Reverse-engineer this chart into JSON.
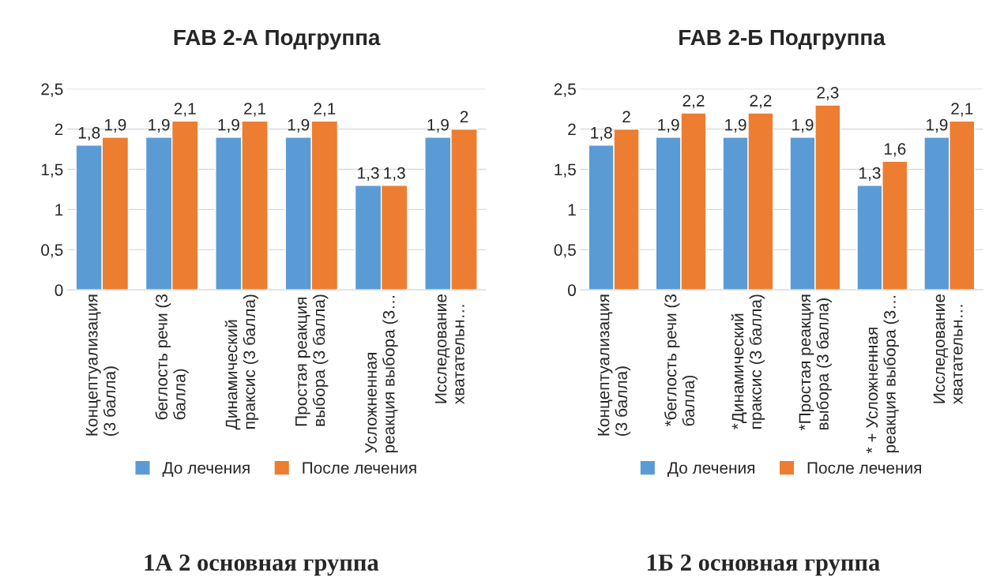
{
  "chart_data": [
    {
      "type": "bar",
      "title": "FAB 2-А Подгруппа",
      "categories": [
        "Концептуализация\n(3 балла)",
        "беглость речи (3\nбалла)",
        "Динамический\nпраксис (3 балла)",
        "Простая реакция\nвыбора (3 балла)",
        "Усложненная\nреакция выбора (3…",
        "Исследование\nхватательн…"
      ],
      "series": [
        {
          "name": "До лечения",
          "color": "#5b9bd5",
          "values": [
            1.8,
            1.9,
            1.9,
            1.9,
            1.3,
            1.9
          ],
          "value_labels": [
            "1,8",
            "1,9",
            "1,9",
            "1,9",
            "1,3",
            "1,9"
          ]
        },
        {
          "name": "После лечения",
          "color": "#ed7d31",
          "values": [
            1.9,
            2.1,
            2.1,
            2.1,
            1.3,
            2
          ],
          "value_labels": [
            "1,9",
            "2,1",
            "2,1",
            "2,1",
            "1,3",
            "2"
          ]
        }
      ],
      "ylim": [
        0,
        2.5
      ],
      "yticks": [
        0,
        {
          "value": 0.5,
          "label": "0,5"
        },
        1,
        {
          "value": 1.5,
          "label": "1,5"
        },
        2,
        {
          "value": 2.5,
          "label": "2,5"
        }
      ],
      "grid": "y",
      "legend": "bottom",
      "annotations": [
        "1А 2 основная группа"
      ]
    },
    {
      "type": "bar",
      "title": "FAB 2-Б Подгруппа",
      "categories": [
        "Концептуализация\n(3 балла)",
        "*беглость речи (3\nбалла)",
        "*Динамический\nпраксис (3 балла)",
        "*Простая реакция\nвыбора (3 балла)",
        "* + Усложненная\nреакция выбора (3…",
        "Исследование\nхватательн…"
      ],
      "series": [
        {
          "name": "До лечения",
          "color": "#5b9bd5",
          "values": [
            1.8,
            1.9,
            1.9,
            1.9,
            1.3,
            1.9
          ],
          "value_labels": [
            "1,8",
            "1,9",
            "1,9",
            "1,9",
            "1,3",
            "1,9"
          ]
        },
        {
          "name": "После лечения",
          "color": "#ed7d31",
          "values": [
            2,
            2.2,
            2.2,
            2.3,
            1.6,
            2.1
          ],
          "value_labels": [
            "2",
            "2,2",
            "2,2",
            "2,3",
            "1,6",
            "2,1"
          ]
        }
      ],
      "ylim": [
        0,
        2.5
      ],
      "yticks": [
        0,
        {
          "value": 0.5,
          "label": "0,5"
        },
        1,
        {
          "value": 1.5,
          "label": "1,5"
        },
        2,
        {
          "value": 2.5,
          "label": "2,5"
        }
      ],
      "grid": "y",
      "legend": "bottom",
      "annotations": [
        "1Б 2 основная группа"
      ]
    }
  ]
}
